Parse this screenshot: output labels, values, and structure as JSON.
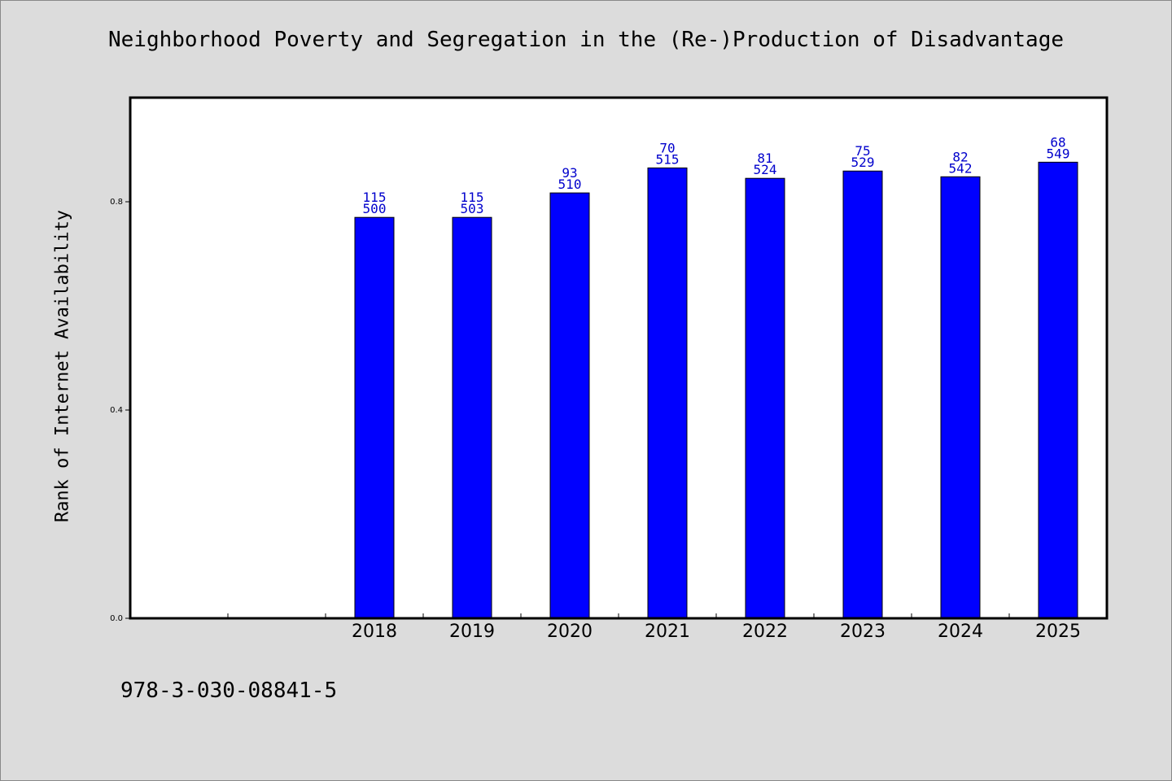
{
  "chart_data": {
    "type": "bar",
    "title": "Neighborhood Poverty and Segregation in the (Re-)Production of Disadvantage",
    "xlabel": "",
    "ylabel": "Rank of Internet Availability",
    "footer_text": "978-3-030-08841-5",
    "x_slots": [
      "",
      "",
      "2018",
      "2019",
      "2020",
      "2021",
      "2022",
      "2023",
      "2024",
      "2025"
    ],
    "categories": [
      "2018",
      "2019",
      "2020",
      "2021",
      "2022",
      "2023",
      "2024",
      "2025"
    ],
    "values": [
      0.77,
      0.77,
      0.817,
      0.865,
      0.845,
      0.859,
      0.848,
      0.876
    ],
    "bar_labels_top": [
      "115",
      "115",
      "93",
      "70",
      "81",
      "75",
      "82",
      "68"
    ],
    "bar_labels_bottom": [
      "500",
      "503",
      "510",
      "515",
      "524",
      "529",
      "542",
      "549"
    ],
    "ylim": [
      0,
      1.0
    ],
    "yticks": [
      0.0,
      0.4,
      0.8
    ],
    "ytick_labels": [
      "0.0",
      "0.4",
      "0.8"
    ],
    "grid": false,
    "colors": {
      "bar": "#0000ff",
      "bar_label": "#0000cc",
      "background": "#dcdcdc",
      "plot_bg": "#ffffff"
    }
  }
}
